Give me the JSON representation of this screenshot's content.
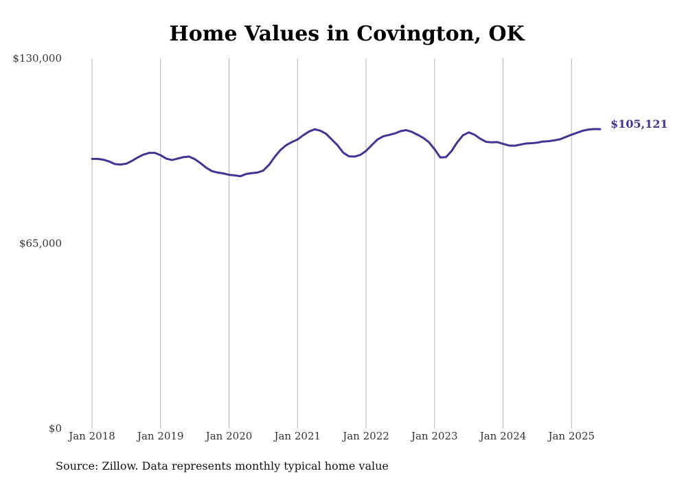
{
  "chart_data": {
    "type": "line",
    "title": "Home Values in Covington, OK",
    "xlabel": "",
    "ylabel": "",
    "ylim": [
      0,
      130000
    ],
    "y_ticks": [
      {
        "value": 0,
        "label": "$0"
      },
      {
        "value": 65000,
        "label": "$65,000"
      },
      {
        "value": 130000,
        "label": "$130,000"
      }
    ],
    "x_ticks": [
      "Jan 2018",
      "Jan 2019",
      "Jan 2020",
      "Jan 2021",
      "Jan 2022",
      "Jan 2023",
      "Jan 2024",
      "Jan 2025"
    ],
    "x_start": "Jan 2018",
    "frequency": "monthly",
    "series": [
      {
        "name": "Typical home value",
        "color": "#3f3498",
        "values": [
          94700,
          94700,
          94400,
          93800,
          92900,
          92700,
          93000,
          94000,
          95200,
          96200,
          96800,
          96800,
          96000,
          94800,
          94300,
          94800,
          95300,
          95500,
          94600,
          93200,
          91600,
          90400,
          89900,
          89600,
          89100,
          88900,
          88600,
          89400,
          89700,
          89900,
          90600,
          92600,
          95400,
          97800,
          99500,
          100600,
          101500,
          103000,
          104300,
          105100,
          104600,
          103500,
          101500,
          99500,
          96900,
          95600,
          95500,
          96100,
          97500,
          99500,
          101500,
          102600,
          103100,
          103600,
          104400,
          104800,
          104200,
          103200,
          102100,
          100600,
          98100,
          95200,
          95300,
          97500,
          100600,
          103000,
          104000,
          103200,
          101800,
          100700,
          100500,
          100600,
          100000,
          99400,
          99300,
          99700,
          100100,
          100200,
          100400,
          100800,
          100900,
          101200,
          101600,
          102400,
          103200,
          103900,
          104600,
          105000,
          105200,
          105121
        ]
      }
    ],
    "end_label": "$105,121"
  },
  "source_note": "Source: Zillow. Data represents monthly typical home value"
}
